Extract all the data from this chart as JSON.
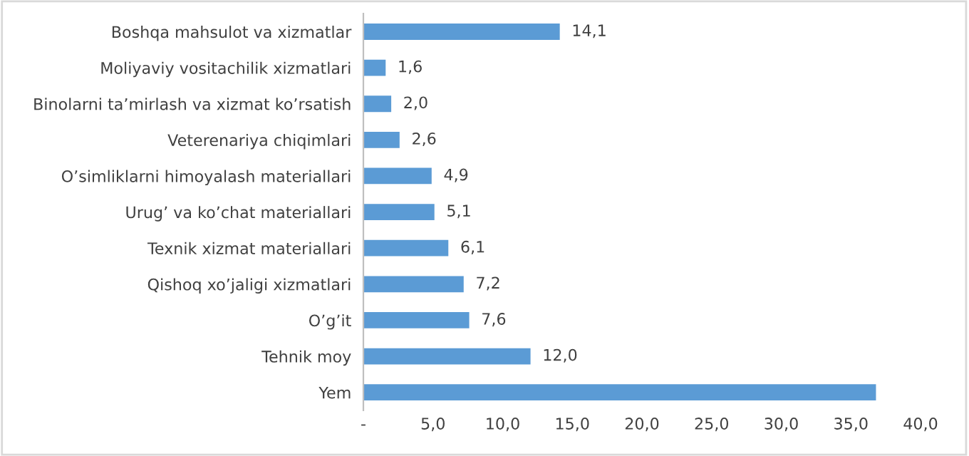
{
  "chart_data": {
    "type": "bar",
    "orientation": "horizontal",
    "categories": [
      "Boshqa mahsulot va xizmatlar",
      "Moliyaviy vositachilik xizmatlari",
      "Binolarni ta’mirlash va xizmat ko’rsatish",
      "Veterenariya chiqimlari",
      "O’simliklarni himoyalash materiallari",
      "Urug’ va ko’chat materiallari",
      "Texnik xizmat materiallari",
      "Qishoq xo’jaligi xizmatlari",
      "O’g’it",
      "Tehnik moy",
      "Yem"
    ],
    "values": [
      14.1,
      1.6,
      2.0,
      2.6,
      4.9,
      5.1,
      6.1,
      7.2,
      7.6,
      12.0,
      36.8
    ],
    "value_labels": [
      "14,1",
      "1,6",
      "2,0",
      "2,6",
      "4,9",
      "5,1",
      "6,1",
      "7,2",
      "7,6",
      "12,0",
      null
    ],
    "color": "#5b9bd5",
    "xlim": [
      0,
      40
    ],
    "xticks": [
      {
        "value": 0,
        "label": "-"
      },
      {
        "value": 5,
        "label": "5,0"
      },
      {
        "value": 10,
        "label": "10,0"
      },
      {
        "value": 15,
        "label": "15,0"
      },
      {
        "value": 20,
        "label": "20,0"
      },
      {
        "value": 25,
        "label": "25,0"
      },
      {
        "value": 30,
        "label": "30,0"
      },
      {
        "value": 35,
        "label": "35,0"
      },
      {
        "value": 40,
        "label": "40,0"
      }
    ],
    "grid": false,
    "legend": false
  }
}
